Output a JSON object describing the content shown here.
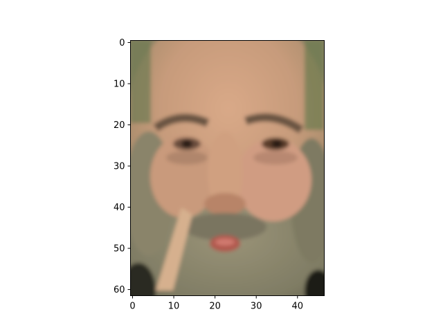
{
  "chart_data": {
    "type": "heatmap",
    "title": "",
    "xlabel": "",
    "ylabel": "",
    "image_size": [
      47,
      62
    ],
    "xlim": [
      -0.5,
      46.5
    ],
    "ylim": [
      61.5,
      -0.5
    ],
    "xticks": [
      0,
      10,
      20,
      30,
      40
    ],
    "yticks": [
      0,
      10,
      20,
      30,
      40,
      50,
      60
    ],
    "xtick_labels": [
      "0",
      "10",
      "20",
      "30",
      "40"
    ],
    "ytick_labels": [
      "0",
      "10",
      "20",
      "30",
      "40",
      "50",
      "60"
    ],
    "grid": false,
    "image_content": "low-resolution grayscale-toned color photo of a bearded man's face",
    "colors": {
      "skin": "#c49a78",
      "skin_light": "#d8b090",
      "beard": "#8a8a72",
      "beard_dark": "#6e6e58",
      "shadow": "#3a3a2a",
      "lips": "#b85a50",
      "eyes": "#3a2a1e",
      "frame": "#000000"
    }
  }
}
